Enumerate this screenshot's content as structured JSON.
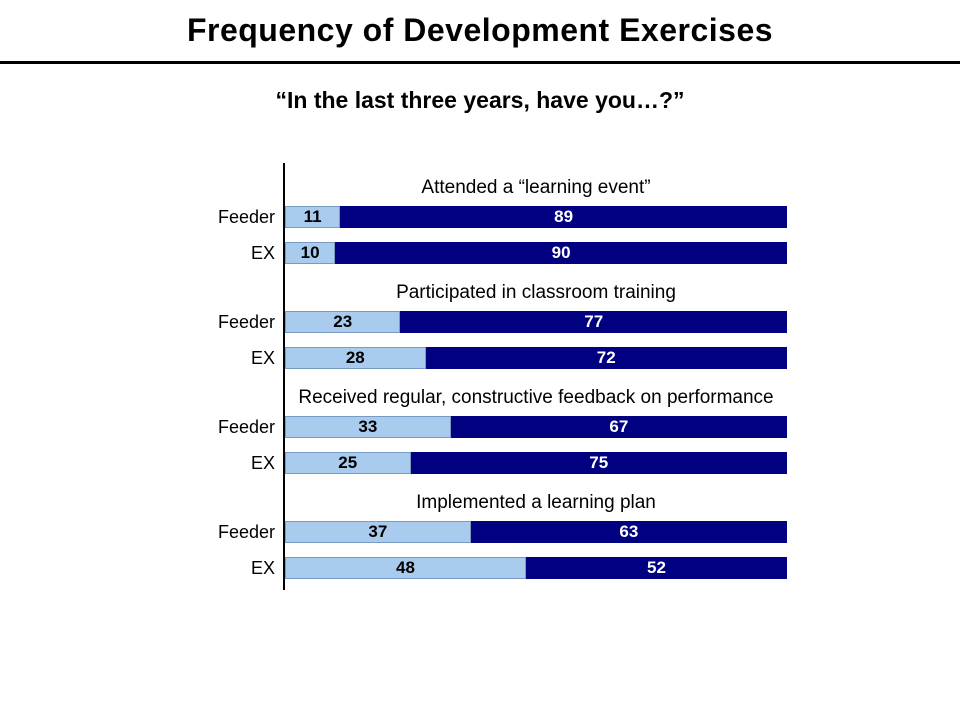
{
  "slide": {
    "title": "Frequency of Development Exercises",
    "subtitle": "“In the last three years, have you…?”"
  },
  "chart_data": {
    "type": "bar",
    "variant": "horizontal-stacked-100",
    "unit": "percent",
    "xlim": [
      0,
      100
    ],
    "grid": false,
    "legend": "none",
    "palette": {
      "segment1_fill": "#A9CBEE",
      "segment1_text": "#000000",
      "segment2_fill": "#000080",
      "segment2_text": "#FFFFFF",
      "axis_line": "#000000"
    },
    "row_labels": [
      "Feeder",
      "EX"
    ],
    "groups": [
      {
        "question": "Attended a “learning event”",
        "rows": [
          {
            "label": "Feeder",
            "values": [
              11,
              89
            ]
          },
          {
            "label": "EX",
            "values": [
              10,
              90
            ]
          }
        ]
      },
      {
        "question": "Participated in classroom training",
        "rows": [
          {
            "label": "Feeder",
            "values": [
              23,
              77
            ]
          },
          {
            "label": "EX",
            "values": [
              28,
              72
            ]
          }
        ]
      },
      {
        "question": "Received regular, constructive feedback on performance",
        "rows": [
          {
            "label": "Feeder",
            "values": [
              33,
              67
            ]
          },
          {
            "label": "EX",
            "values": [
              25,
              75
            ]
          }
        ]
      },
      {
        "question": "Implemented a learning plan",
        "rows": [
          {
            "label": "Feeder",
            "values": [
              37,
              63
            ]
          },
          {
            "label": "EX",
            "values": [
              48,
              52
            ]
          }
        ]
      }
    ]
  }
}
